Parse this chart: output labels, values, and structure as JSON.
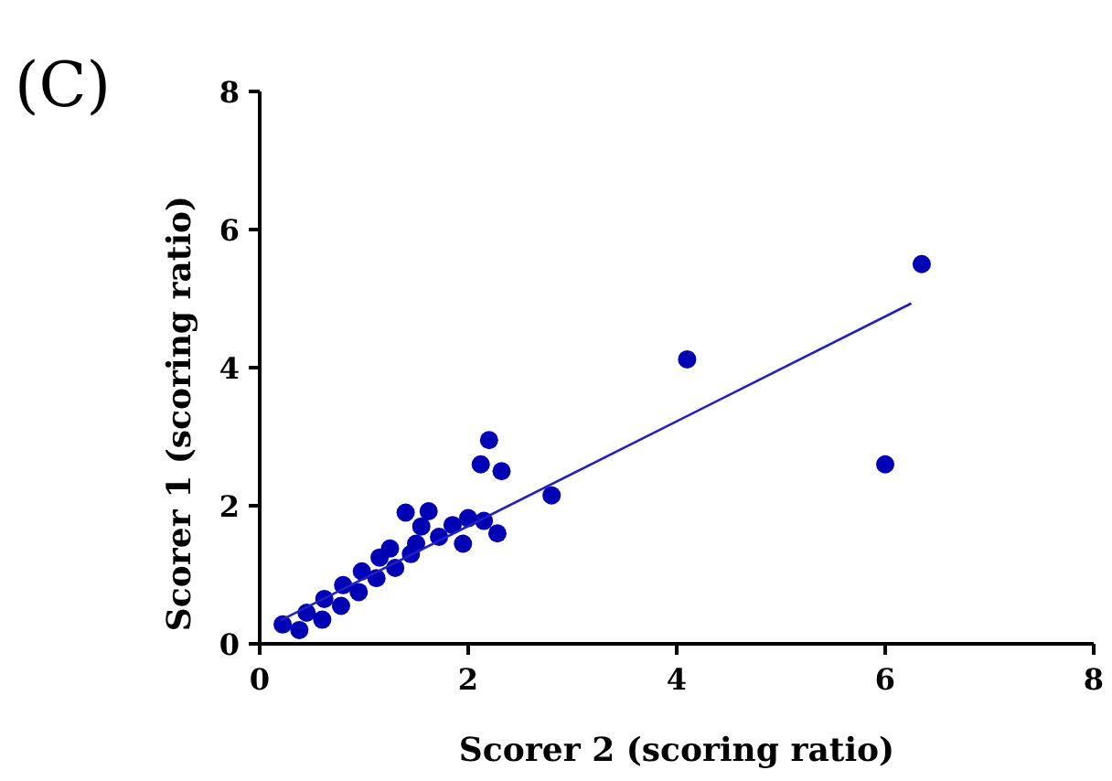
{
  "chart_data": {
    "type": "scatter",
    "title": "(C)",
    "xlabel": "Scorer 2 (scoring ratio)",
    "ylabel": "Scorer 1 (scoring ratio)",
    "xlim": [
      0,
      8
    ],
    "ylim": [
      0,
      8
    ],
    "xticks": [
      0,
      2,
      4,
      6,
      8
    ],
    "yticks": [
      0,
      2,
      4,
      6,
      8
    ],
    "grid": false,
    "series": [
      {
        "marker": "circle",
        "color": "#0000b4",
        "x": [
          0.22,
          0.38,
          0.45,
          0.6,
          0.62,
          0.78,
          0.8,
          0.95,
          0.98,
          1.12,
          1.15,
          1.3,
          1.25,
          1.45,
          1.4,
          1.55,
          1.62,
          1.5,
          1.72,
          1.85,
          1.95,
          2.0,
          2.15,
          2.12,
          2.2,
          2.32,
          2.28,
          2.8,
          4.1,
          6.0,
          6.35
        ],
        "values": [
          0.28,
          0.2,
          0.45,
          0.35,
          0.65,
          0.55,
          0.85,
          0.75,
          1.05,
          0.95,
          1.25,
          1.1,
          1.38,
          1.3,
          1.9,
          1.7,
          1.92,
          1.45,
          1.55,
          1.72,
          1.45,
          1.82,
          1.78,
          2.6,
          2.95,
          2.5,
          1.6,
          2.15,
          4.12,
          2.6,
          5.5
        ]
      },
      {
        "type": "line",
        "marker": "none",
        "color": "#2020c0",
        "x": [
          0.2,
          6.25
        ],
        "values": [
          0.34,
          4.93
        ]
      }
    ]
  }
}
